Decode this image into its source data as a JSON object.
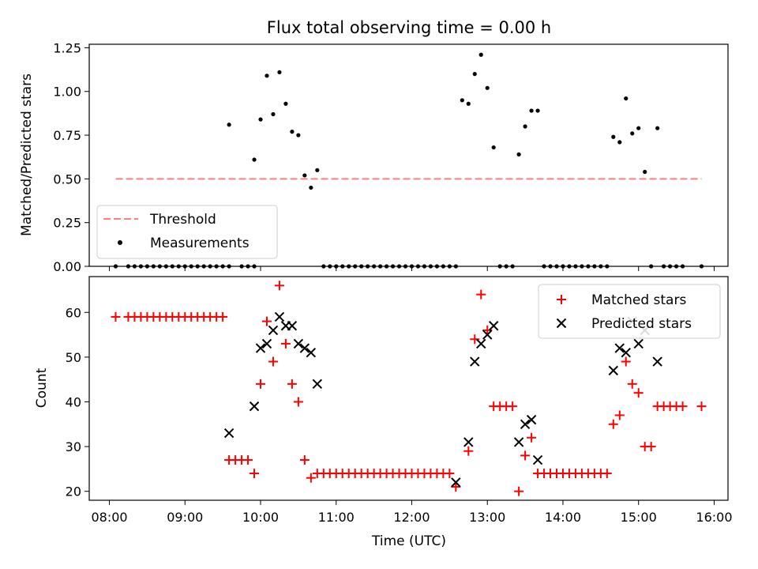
{
  "chart_data": [
    {
      "type": "scatter",
      "title": "Flux total observing time = 0.00 h",
      "xlabel": "",
      "ylabel": "Matched/Predicted stars",
      "ylim": [
        0,
        1.27
      ],
      "xlim": [
        "07:44",
        "16:11"
      ],
      "yticks": [
        0.0,
        0.25,
        0.5,
        0.75,
        1.0,
        1.25
      ],
      "ytick_labels": [
        "0.00",
        "0.25",
        "0.50",
        "0.75",
        "1.00",
        "1.25"
      ],
      "legend": "lower-left",
      "threshold": {
        "name": "Threshold",
        "color": "#ff7f7f",
        "style": "dashed",
        "y": 0.5,
        "x_range": [
          "08:05",
          "15:50"
        ]
      },
      "series": [
        {
          "name": "Measurements",
          "color": "#000000",
          "marker": "dot",
          "points": [
            [
              "08:05",
              0.0
            ],
            [
              "08:15",
              0.0
            ],
            [
              "08:20",
              0.0
            ],
            [
              "08:25",
              0.0
            ],
            [
              "08:30",
              0.0
            ],
            [
              "08:35",
              0.0
            ],
            [
              "08:40",
              0.0
            ],
            [
              "08:45",
              0.0
            ],
            [
              "08:50",
              0.0
            ],
            [
              "08:55",
              0.0
            ],
            [
              "09:00",
              0.0
            ],
            [
              "09:05",
              0.0
            ],
            [
              "09:10",
              0.0
            ],
            [
              "09:15",
              0.0
            ],
            [
              "09:20",
              0.0
            ],
            [
              "09:25",
              0.0
            ],
            [
              "09:30",
              0.0
            ],
            [
              "09:35",
              0.0
            ],
            [
              "09:45",
              0.0
            ],
            [
              "09:50",
              0.0
            ],
            [
              "09:55",
              0.0
            ],
            [
              "09:35",
              0.81
            ],
            [
              "09:55",
              0.61
            ],
            [
              "10:00",
              0.84
            ],
            [
              "10:05",
              1.09
            ],
            [
              "10:10",
              0.87
            ],
            [
              "10:15",
              1.11
            ],
            [
              "10:20",
              0.93
            ],
            [
              "10:25",
              0.77
            ],
            [
              "10:30",
              0.75
            ],
            [
              "10:35",
              0.52
            ],
            [
              "10:40",
              0.45
            ],
            [
              "10:45",
              0.55
            ],
            [
              "10:50",
              0.0
            ],
            [
              "10:55",
              0.0
            ],
            [
              "11:00",
              0.0
            ],
            [
              "11:05",
              0.0
            ],
            [
              "11:10",
              0.0
            ],
            [
              "11:15",
              0.0
            ],
            [
              "11:20",
              0.0
            ],
            [
              "11:25",
              0.0
            ],
            [
              "11:30",
              0.0
            ],
            [
              "11:35",
              0.0
            ],
            [
              "11:40",
              0.0
            ],
            [
              "11:45",
              0.0
            ],
            [
              "11:50",
              0.0
            ],
            [
              "11:55",
              0.0
            ],
            [
              "12:00",
              0.0
            ],
            [
              "12:05",
              0.0
            ],
            [
              "12:10",
              0.0
            ],
            [
              "12:15",
              0.0
            ],
            [
              "12:20",
              0.0
            ],
            [
              "12:25",
              0.0
            ],
            [
              "12:30",
              0.0
            ],
            [
              "12:35",
              0.0
            ],
            [
              "12:40",
              0.95
            ],
            [
              "12:45",
              0.93
            ],
            [
              "12:50",
              1.1
            ],
            [
              "12:55",
              1.21
            ],
            [
              "13:00",
              1.02
            ],
            [
              "13:05",
              0.68
            ],
            [
              "13:10",
              0.0
            ],
            [
              "13:15",
              0.0
            ],
            [
              "13:20",
              0.0
            ],
            [
              "13:25",
              0.64
            ],
            [
              "13:30",
              0.8
            ],
            [
              "13:35",
              0.89
            ],
            [
              "13:40",
              0.89
            ],
            [
              "13:45",
              0.0
            ],
            [
              "13:50",
              0.0
            ],
            [
              "13:55",
              0.0
            ],
            [
              "14:00",
              0.0
            ],
            [
              "14:05",
              0.0
            ],
            [
              "14:10",
              0.0
            ],
            [
              "14:15",
              0.0
            ],
            [
              "14:20",
              0.0
            ],
            [
              "14:25",
              0.0
            ],
            [
              "14:30",
              0.0
            ],
            [
              "14:35",
              0.0
            ],
            [
              "14:40",
              0.74
            ],
            [
              "14:45",
              0.71
            ],
            [
              "14:50",
              0.96
            ],
            [
              "14:55",
              0.76
            ],
            [
              "15:00",
              0.79
            ],
            [
              "15:05",
              0.54
            ],
            [
              "15:15",
              0.79
            ],
            [
              "15:10",
              0.0
            ],
            [
              "15:20",
              0.0
            ],
            [
              "15:25",
              0.0
            ],
            [
              "15:30",
              0.0
            ],
            [
              "15:35",
              0.0
            ],
            [
              "15:50",
              0.0
            ]
          ]
        }
      ]
    },
    {
      "type": "scatter",
      "title": "",
      "xlabel": "Time (UTC)",
      "ylabel": "Count",
      "ylim": [
        18,
        68
      ],
      "xlim": [
        "07:44",
        "16:11"
      ],
      "yticks": [
        20,
        30,
        40,
        50,
        60
      ],
      "xticks": [
        "08:00",
        "09:00",
        "10:00",
        "11:00",
        "12:00",
        "13:00",
        "14:00",
        "15:00",
        "16:00"
      ],
      "legend": "upper-right",
      "series": [
        {
          "name": "Matched stars",
          "color": "#ff0000",
          "marker": "plus",
          "points": [
            [
              "08:05",
              59
            ],
            [
              "08:15",
              59
            ],
            [
              "08:20",
              59
            ],
            [
              "08:25",
              59
            ],
            [
              "08:30",
              59
            ],
            [
              "08:35",
              59
            ],
            [
              "08:40",
              59
            ],
            [
              "08:45",
              59
            ],
            [
              "08:50",
              59
            ],
            [
              "08:55",
              59
            ],
            [
              "09:00",
              59
            ],
            [
              "09:05",
              59
            ],
            [
              "09:10",
              59
            ],
            [
              "09:15",
              59
            ],
            [
              "09:20",
              59
            ],
            [
              "09:25",
              59
            ],
            [
              "09:30",
              59
            ],
            [
              "09:35",
              27
            ],
            [
              "09:40",
              27
            ],
            [
              "09:45",
              27
            ],
            [
              "09:50",
              27
            ],
            [
              "09:55",
              24
            ],
            [
              "10:00",
              44
            ],
            [
              "10:05",
              58
            ],
            [
              "10:10",
              49
            ],
            [
              "10:15",
              66
            ],
            [
              "10:20",
              53
            ],
            [
              "10:25",
              44
            ],
            [
              "10:30",
              40
            ],
            [
              "10:35",
              27
            ],
            [
              "10:40",
              23
            ],
            [
              "10:45",
              24
            ],
            [
              "10:50",
              24
            ],
            [
              "10:55",
              24
            ],
            [
              "11:00",
              24
            ],
            [
              "11:05",
              24
            ],
            [
              "11:10",
              24
            ],
            [
              "11:15",
              24
            ],
            [
              "11:20",
              24
            ],
            [
              "11:25",
              24
            ],
            [
              "11:30",
              24
            ],
            [
              "11:35",
              24
            ],
            [
              "11:40",
              24
            ],
            [
              "11:45",
              24
            ],
            [
              "11:50",
              24
            ],
            [
              "11:55",
              24
            ],
            [
              "12:00",
              24
            ],
            [
              "12:05",
              24
            ],
            [
              "12:10",
              24
            ],
            [
              "12:15",
              24
            ],
            [
              "12:20",
              24
            ],
            [
              "12:25",
              24
            ],
            [
              "12:30",
              24
            ],
            [
              "12:35",
              21
            ],
            [
              "12:45",
              29
            ],
            [
              "12:50",
              54
            ],
            [
              "12:55",
              64
            ],
            [
              "13:00",
              56
            ],
            [
              "13:05",
              39
            ],
            [
              "13:10",
              39
            ],
            [
              "13:15",
              39
            ],
            [
              "13:20",
              39
            ],
            [
              "13:25",
              20
            ],
            [
              "13:30",
              28
            ],
            [
              "13:35",
              32
            ],
            [
              "13:40",
              24
            ],
            [
              "13:45",
              24
            ],
            [
              "13:50",
              24
            ],
            [
              "13:55",
              24
            ],
            [
              "14:00",
              24
            ],
            [
              "14:05",
              24
            ],
            [
              "14:10",
              24
            ],
            [
              "14:15",
              24
            ],
            [
              "14:20",
              24
            ],
            [
              "14:25",
              24
            ],
            [
              "14:30",
              24
            ],
            [
              "14:35",
              24
            ],
            [
              "14:40",
              35
            ],
            [
              "14:45",
              37
            ],
            [
              "14:50",
              49
            ],
            [
              "14:55",
              44
            ],
            [
              "15:00",
              42
            ],
            [
              "15:05",
              30
            ],
            [
              "15:10",
              30
            ],
            [
              "15:15",
              39
            ],
            [
              "15:20",
              39
            ],
            [
              "15:25",
              39
            ],
            [
              "15:30",
              39
            ],
            [
              "15:35",
              39
            ],
            [
              "15:50",
              39
            ]
          ]
        },
        {
          "name": "Predicted stars",
          "color": "#000000",
          "marker": "x",
          "points": [
            [
              "09:35",
              33
            ],
            [
              "09:55",
              39
            ],
            [
              "10:00",
              52
            ],
            [
              "10:05",
              53
            ],
            [
              "10:10",
              56
            ],
            [
              "10:15",
              59
            ],
            [
              "10:20",
              57
            ],
            [
              "10:25",
              57
            ],
            [
              "10:30",
              53
            ],
            [
              "10:35",
              52
            ],
            [
              "10:40",
              51
            ],
            [
              "10:45",
              44
            ],
            [
              "12:35",
              22
            ],
            [
              "12:45",
              31
            ],
            [
              "12:50",
              49
            ],
            [
              "12:55",
              53
            ],
            [
              "13:00",
              55
            ],
            [
              "13:05",
              57
            ],
            [
              "13:25",
              31
            ],
            [
              "13:30",
              35
            ],
            [
              "13:35",
              36
            ],
            [
              "13:40",
              27
            ],
            [
              "14:40",
              47
            ],
            [
              "14:45",
              52
            ],
            [
              "14:50",
              51
            ],
            [
              "14:55",
              58
            ],
            [
              "15:00",
              53
            ],
            [
              "15:05",
              56
            ],
            [
              "15:15",
              49
            ]
          ]
        }
      ]
    }
  ]
}
